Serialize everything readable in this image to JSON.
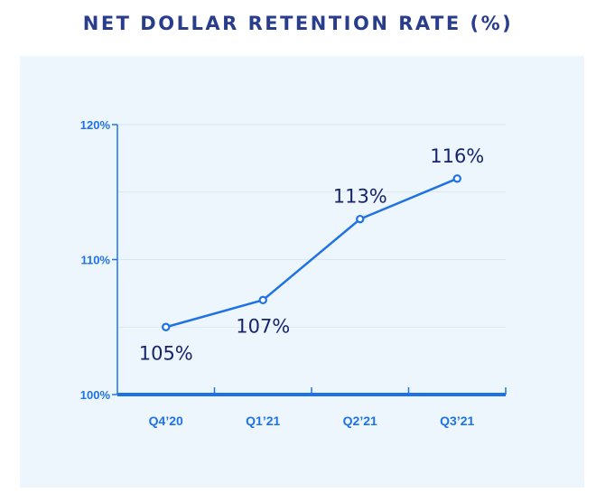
{
  "title": "NET DOLLAR RETENTION RATE (%)",
  "colors": {
    "title": "#2a3d8c",
    "accent": "#1e72e6",
    "label": "#16246b",
    "panel": "#eef6fd",
    "grid": "#dbe6f3"
  },
  "chart_data": {
    "type": "line",
    "title": "NET DOLLAR RETENTION RATE (%)",
    "categories": [
      "Q4’20",
      "Q1’21",
      "Q2’21",
      "Q3’21"
    ],
    "series": [
      {
        "values": [
          105,
          107,
          113,
          116
        ]
      }
    ],
    "data_labels": [
      "105%",
      "107%",
      "113%",
      "116%"
    ],
    "ylim": [
      100,
      120
    ],
    "yticks": [
      100,
      110,
      120
    ],
    "ytick_labels": [
      "100%",
      "110%",
      "120%"
    ],
    "xlabel": "",
    "ylabel": "",
    "grid": true,
    "legend": "none"
  }
}
